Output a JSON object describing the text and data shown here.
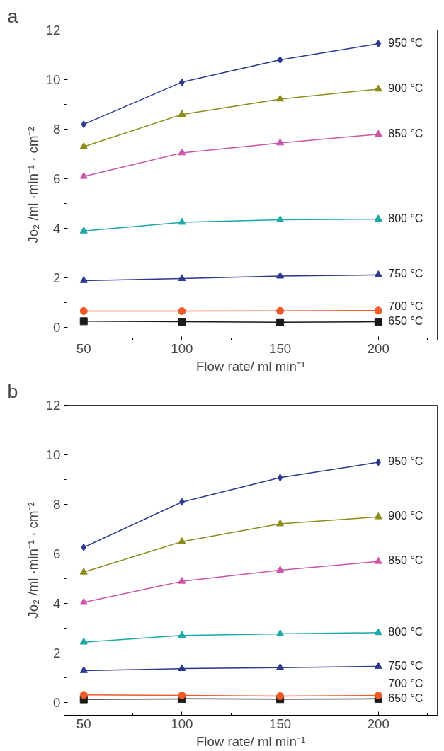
{
  "chart_data": [
    {
      "type": "line",
      "title": "a",
      "xlabel": "Flow rate/ ml min⁻¹",
      "ylabel": "Jo₂ /ml ·min⁻¹ · cm⁻²",
      "x": [
        50,
        100,
        150,
        200
      ],
      "xlim": [
        40,
        230
      ],
      "xticks": [
        50,
        100,
        150,
        200
      ],
      "ylim": [
        -0.5,
        12
      ],
      "yticks": [
        0,
        2,
        4,
        6,
        8,
        10,
        12
      ],
      "grid": false,
      "legend": false,
      "series": [
        {
          "name": "950 °C",
          "color": "#2b3990",
          "marker": "diamond",
          "values": [
            8.2,
            9.9,
            10.8,
            11.45
          ]
        },
        {
          "name": "900 °C",
          "color": "#8c8c1a",
          "marker": "triangle",
          "values": [
            7.3,
            8.6,
            9.22,
            9.62
          ]
        },
        {
          "name": "850 °C",
          "color": "#cc55aa",
          "marker": "triangle",
          "values": [
            6.1,
            7.05,
            7.45,
            7.8
          ]
        },
        {
          "name": "800 °C",
          "color": "#1aa8a8",
          "marker": "triangle",
          "values": [
            3.9,
            4.25,
            4.35,
            4.38
          ]
        },
        {
          "name": "750 °C",
          "color": "#2b3990",
          "marker": "triangle",
          "values": [
            1.9,
            1.98,
            2.08,
            2.13
          ]
        },
        {
          "name": "700 °C",
          "color": "#ef5a28",
          "marker": "circle",
          "values": [
            0.67,
            0.67,
            0.68,
            0.69
          ]
        },
        {
          "name": "650 °C",
          "color": "#1a1a1a",
          "marker": "square",
          "values": [
            0.26,
            0.24,
            0.22,
            0.24
          ]
        }
      ]
    },
    {
      "type": "line",
      "title": "b",
      "xlabel": "Flow rate/ ml min⁻¹",
      "ylabel": "Jo₂ /ml ·min⁻¹ · cm⁻²",
      "x": [
        50,
        100,
        150,
        200
      ],
      "xlim": [
        40,
        230
      ],
      "xticks": [
        50,
        100,
        150,
        200
      ],
      "ylim": [
        -0.5,
        12
      ],
      "yticks": [
        0,
        2,
        4,
        6,
        8,
        10,
        12
      ],
      "grid": false,
      "legend": false,
      "series": [
        {
          "name": "950 °C",
          "color": "#2b3990",
          "marker": "diamond",
          "values": [
            6.27,
            8.1,
            9.08,
            9.7
          ]
        },
        {
          "name": "900 °C",
          "color": "#8c8c1a",
          "marker": "triangle",
          "values": [
            5.27,
            6.5,
            7.22,
            7.5
          ]
        },
        {
          "name": "850 °C",
          "color": "#cc55aa",
          "marker": "triangle",
          "values": [
            4.05,
            4.9,
            5.35,
            5.7
          ]
        },
        {
          "name": "800 °C",
          "color": "#1aa8a8",
          "marker": "triangle",
          "values": [
            2.45,
            2.72,
            2.78,
            2.83
          ]
        },
        {
          "name": "750 °C",
          "color": "#2b3990",
          "marker": "triangle",
          "values": [
            1.3,
            1.38,
            1.42,
            1.47
          ]
        },
        {
          "name": "700 °C",
          "color": "#ef5a28",
          "marker": "circle",
          "values": [
            0.32,
            0.3,
            0.27,
            0.3
          ]
        },
        {
          "name": "650 °C",
          "color": "#1a1a1a",
          "marker": "square",
          "values": [
            0.14,
            0.16,
            0.15,
            0.16
          ]
        }
      ]
    }
  ]
}
